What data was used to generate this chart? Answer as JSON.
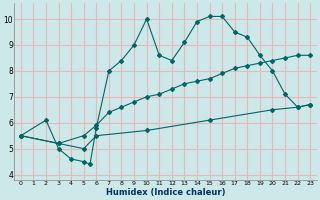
{
  "xlabel": "Humidex (Indice chaleur)",
  "bg_color": "#cce8e8",
  "line_color": "#006666",
  "grid_color": "#e8b8b8",
  "xlim": [
    -0.5,
    23.5
  ],
  "ylim": [
    3.8,
    10.6
  ],
  "line1_x": [
    0,
    2,
    3,
    4,
    5,
    5.5,
    6,
    7,
    8,
    9,
    10,
    11,
    12,
    13,
    14,
    15,
    16,
    17,
    18,
    19,
    20,
    21,
    22,
    23
  ],
  "line1_y": [
    5.5,
    6.1,
    5.0,
    4.6,
    4.5,
    4.4,
    5.8,
    8.0,
    8.4,
    9.0,
    10.0,
    8.6,
    8.4,
    9.1,
    9.9,
    10.1,
    10.1,
    9.5,
    9.3,
    8.6,
    8.0,
    7.1,
    6.6,
    6.7
  ],
  "line2_x": [
    0,
    3,
    5,
    6,
    7,
    8,
    9,
    10,
    11,
    12,
    13,
    14,
    15,
    16,
    17,
    18,
    19,
    20,
    21,
    22,
    23
  ],
  "line2_y": [
    5.5,
    5.2,
    5.5,
    5.9,
    6.4,
    6.6,
    6.8,
    7.0,
    7.1,
    7.3,
    7.5,
    7.6,
    7.7,
    7.9,
    8.1,
    8.2,
    8.3,
    8.4,
    8.5,
    8.6,
    8.6
  ],
  "line3_x": [
    0,
    3,
    5,
    6,
    10,
    15,
    20,
    22,
    23
  ],
  "line3_y": [
    5.5,
    5.2,
    5.0,
    5.5,
    5.7,
    6.1,
    6.5,
    6.6,
    6.7
  ],
  "xticks": [
    0,
    1,
    2,
    3,
    4,
    5,
    6,
    7,
    8,
    9,
    10,
    11,
    12,
    13,
    14,
    15,
    16,
    17,
    18,
    19,
    20,
    21,
    22,
    23
  ],
  "yticks": [
    4,
    5,
    6,
    7,
    8,
    9,
    10
  ]
}
